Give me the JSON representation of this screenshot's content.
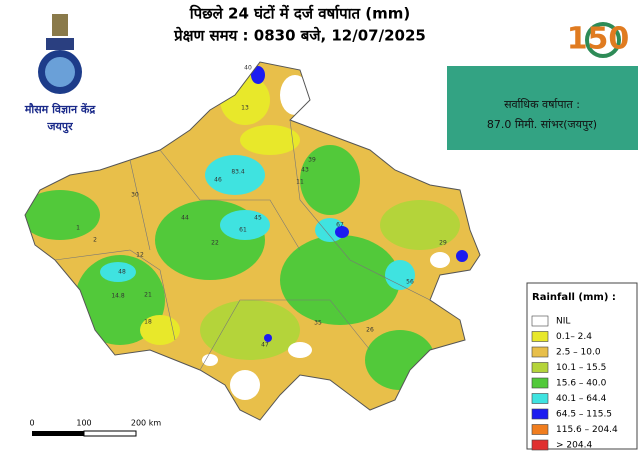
{
  "header": {
    "title": "पिछले 24 घंटों में दर्ज वर्षापात (mm)",
    "subtitle": "प्रेक्षण समय : 0830 बजे, 12/07/2025"
  },
  "logo": {
    "name": "मौसम विज्ञान केंद्र",
    "city": "जयपुर"
  },
  "anniversary_logo": {
    "number": "150"
  },
  "max_rainfall": {
    "label": "सर्वाधिक वर्षापात :",
    "value": "87.0 मिमी. सांभर(जयपुर)"
  },
  "legend": {
    "title": "Rainfall (mm) :",
    "items": [
      {
        "label": "NIL",
        "color": "#ffffff"
      },
      {
        "label": "0.1–  2.4",
        "color": "#e8e82a"
      },
      {
        "label": "2.5 – 10.0",
        "color": "#e8bf4a"
      },
      {
        "label": "10.1 – 15.5",
        "color": "#b4d43a"
      },
      {
        "label": "15.6 – 40.0",
        "color": "#52c93a"
      },
      {
        "label": "40.1 – 64.4",
        "color": "#3fe3e0"
      },
      {
        "label": "64.5 – 115.5",
        "color": "#1c1cf0"
      },
      {
        "label": "115.6 – 204.4",
        "color": "#f07d1e"
      },
      {
        "label": "> 204.4",
        "color": "#e03030"
      }
    ]
  },
  "scale_bar": {
    "labels": [
      "0",
      "100",
      "200 km"
    ]
  },
  "stations": [
    "40",
    "13",
    "46",
    "83.4",
    "30",
    "44",
    "45",
    "61",
    "22",
    "43",
    "39",
    "67",
    "48",
    "14.8",
    "21",
    "18",
    "47",
    "26",
    "29",
    "56",
    "35",
    "12",
    "2",
    "1",
    "11"
  ]
}
